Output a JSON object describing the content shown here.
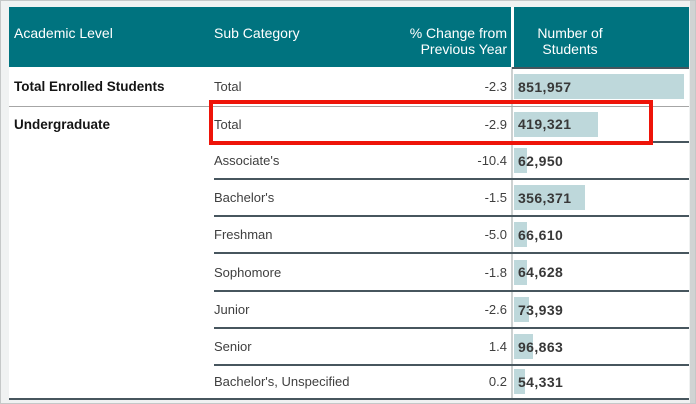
{
  "header": {
    "academic_level": "Academic Level",
    "sub_category": "Sub Category",
    "pct_change_line1": "% Change from",
    "pct_change_line2": "Previous Year",
    "students_line1": "Number of",
    "students_line2": "Students"
  },
  "table": {
    "bar_max_value": 851957,
    "rows": [
      {
        "academic_level": "Total Enrolled Students",
        "sub_category": "Total",
        "pct_change": "-2.3",
        "students": "851,957",
        "students_value": 851957,
        "highlighted": false
      },
      {
        "academic_level": "Undergraduate",
        "sub_category": "Total",
        "pct_change": "-2.9",
        "students": "419,321",
        "students_value": 419321,
        "highlighted": true
      },
      {
        "sub_category": "Associate's",
        "pct_change": "-10.4",
        "students": "62,950",
        "students_value": 62950,
        "highlighted": false
      },
      {
        "sub_category": "Bachelor's",
        "pct_change": "-1.5",
        "students": "356,371",
        "students_value": 356371,
        "highlighted": false
      },
      {
        "sub_category": "Freshman",
        "pct_change": "-5.0",
        "students": "66,610",
        "students_value": 66610,
        "highlighted": false
      },
      {
        "sub_category": "Sophomore",
        "pct_change": "-1.8",
        "students": "64,628",
        "students_value": 64628,
        "highlighted": false
      },
      {
        "sub_category": "Junior",
        "pct_change": "-2.6",
        "students": "73,939",
        "students_value": 73939,
        "highlighted": false
      },
      {
        "sub_category": "Senior",
        "pct_change": "1.4",
        "students": "96,863",
        "students_value": 96863,
        "highlighted": false
      },
      {
        "sub_category": "Bachelor's, Unspecified",
        "pct_change": "0.2",
        "students": "54,331",
        "students_value": 54331,
        "highlighted": false
      }
    ]
  },
  "colors": {
    "header_teal": "#00737f",
    "bar_fill": "#bed8db",
    "highlight_red": "#ee1409",
    "dark_separator": "#47565e",
    "light_separator": "#a6a6a6",
    "header_text": "#ffffff"
  },
  "chart_data": {
    "type": "table",
    "columns": [
      "Academic Level",
      "Sub Category",
      "% Change from Previous Year",
      "Number of Students"
    ],
    "rows": [
      [
        "Total Enrolled Students",
        "Total",
        -2.3,
        851957
      ],
      [
        "Undergraduate",
        "Total",
        -2.9,
        419321
      ],
      [
        "",
        "Associate's",
        -10.4,
        62950
      ],
      [
        "",
        "Bachelor's",
        -1.5,
        356371
      ],
      [
        "",
        "Freshman",
        -5.0,
        66610
      ],
      [
        "",
        "Sophomore",
        -1.8,
        64628
      ],
      [
        "",
        "Junior",
        -2.6,
        73939
      ],
      [
        "",
        "Senior",
        1.4,
        96863
      ],
      [
        "",
        "Bachelor's, Unspecified",
        0.2,
        54331
      ]
    ],
    "bar_column": "Number of Students",
    "bar_axis_max": 851957,
    "highlighted_row_index": 1,
    "legend": "none",
    "layout": "crosstab with in-cell horizontal bars proportional to Number of Students; Undergraduate cell merged across sub-category rows"
  }
}
